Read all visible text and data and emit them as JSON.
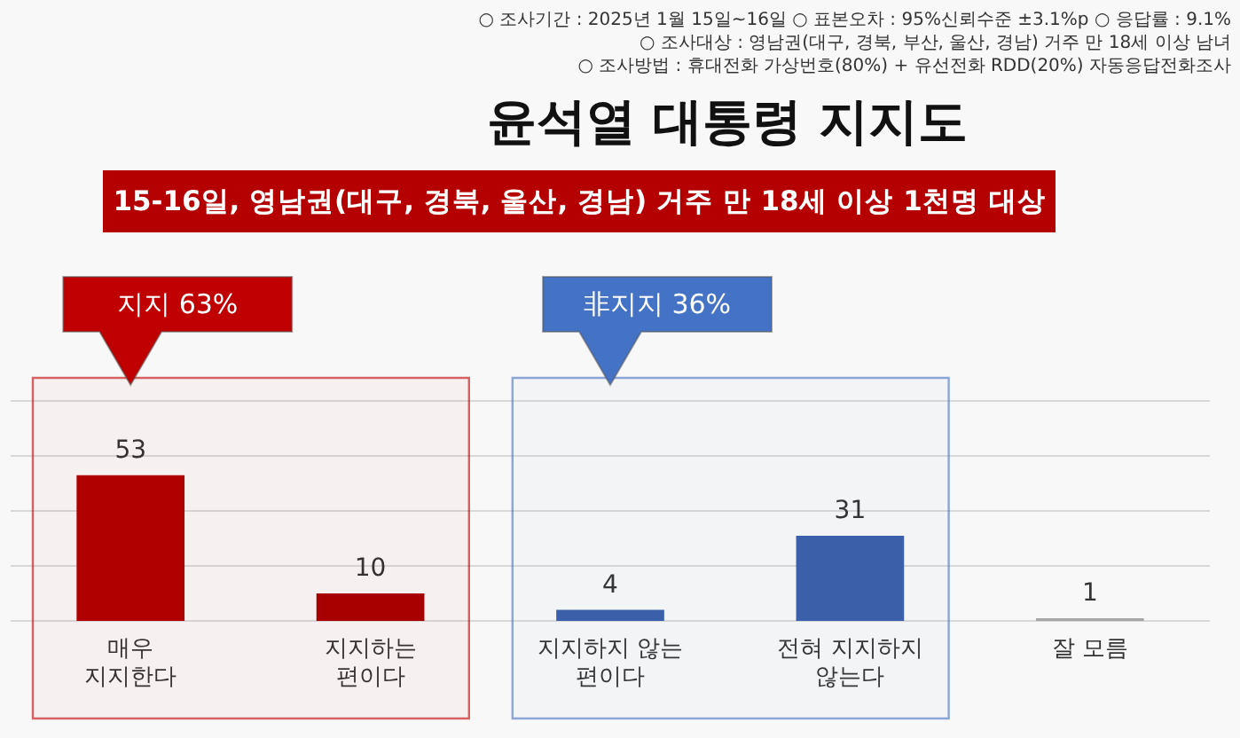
{
  "chart_data": {
    "type": "bar",
    "title": "윤석열 대통령 지지도",
    "subtitle": "15-16일, 영남권(대구, 경북, 울산, 경남) 거주 만 18세 이상 1천명 대상",
    "categories": [
      "매우 지지한다",
      "지지하는 편이다",
      "지지하지 않는 편이다",
      "전혀 지지하지 않는다",
      "잘 모름"
    ],
    "values": [
      53,
      10,
      4,
      31,
      1
    ],
    "colors": [
      "#b00000",
      "#a80000",
      "#3b5ea8",
      "#3b5ea8",
      "#a6a6a6"
    ],
    "data_labels": true,
    "ylim": [
      0,
      80
    ],
    "yticks": [
      {
        "value": 0,
        "label": null
      },
      {
        "value": 20,
        "label": null
      },
      {
        "value": 40,
        "label": null
      },
      {
        "value": 60,
        "label": null
      },
      {
        "value": 80,
        "label": null
      }
    ],
    "grid": "y",
    "tick_labels": "x",
    "bands": [
      {
        "axis": "x",
        "from": "매우 지지한다",
        "to": "지지하는 편이다",
        "label": "지지 63%",
        "color": "#c00000"
      },
      {
        "axis": "x",
        "from": "지지하지 않는 편이다",
        "to": "전혀 지지하지 않는다",
        "label": "非지지 36%",
        "color": "#4472c4"
      }
    ],
    "annotations": [
      "○ 조사기간 : 2025년 1월 15일~16일 ○ 표본오차 : 95%신뢰수준 ±3.1%p ○ 응답률 : 9.1%",
      "○ 조사대상 : 영남권(대구, 경북, 부산, 울산, 경남) 거주 만 18세 이상 남녀",
      "○ 조사방법 : 휴대전화 가상번호(80%) + 유선전화 RDD(20%) 자동응답전화조사"
    ]
  }
}
